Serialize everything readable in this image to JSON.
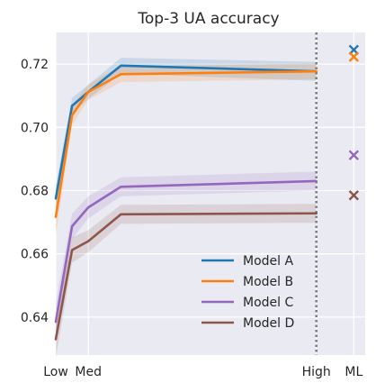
{
  "chart_data": {
    "type": "line",
    "title": "Top-3 UA accuracy",
    "xlabel": "",
    "ylabel": "",
    "x_ticks": [
      {
        "value": 0,
        "label": "Low"
      },
      {
        "value": 2,
        "label": "Med"
      },
      {
        "value": 16,
        "label": "High"
      },
      {
        "value": 18.3,
        "label": "ML"
      }
    ],
    "x": [
      0,
      1,
      2,
      4,
      16
    ],
    "xlim": [
      0,
      19
    ],
    "ylim": [
      0.628,
      0.73
    ],
    "y_ticks": [
      0.64,
      0.66,
      0.68,
      0.7,
      0.72
    ],
    "y_tick_labels": [
      "0.64",
      "0.66",
      "0.68",
      "0.70",
      "0.72"
    ],
    "grid": true,
    "legend_position": "lower-right",
    "vline": {
      "x": 16,
      "style": "dotted",
      "color": "#7a7a7a"
    },
    "series": [
      {
        "name": "Model A",
        "color": "#1f77b4",
        "values": [
          0.6775,
          0.7068,
          0.7112,
          0.7195,
          0.7177
        ],
        "band_halfwidth": [
          0.004,
          0.0025,
          0.0022,
          0.0025,
          0.003
        ],
        "ml_value": 0.7245
      },
      {
        "name": "Model B",
        "color": "#ff7f0e",
        "values": [
          0.6717,
          0.7038,
          0.7112,
          0.7168,
          0.7177
        ],
        "band_halfwidth": [
          0.006,
          0.003,
          0.0025,
          0.0025,
          0.0025
        ],
        "ml_value": 0.7223
      },
      {
        "name": "Model C",
        "color": "#9467bd",
        "values": [
          0.6385,
          0.6687,
          0.6747,
          0.6812,
          0.683
        ],
        "band_halfwidth": [
          0.006,
          0.004,
          0.0035,
          0.003,
          0.003
        ],
        "ml_value": 0.6912
      },
      {
        "name": "Model D",
        "color": "#8c564b",
        "values": [
          0.633,
          0.6612,
          0.664,
          0.6725,
          0.6728
        ],
        "band_halfwidth": [
          0.006,
          0.004,
          0.0035,
          0.003,
          0.003
        ],
        "ml_value": 0.6785
      }
    ]
  }
}
